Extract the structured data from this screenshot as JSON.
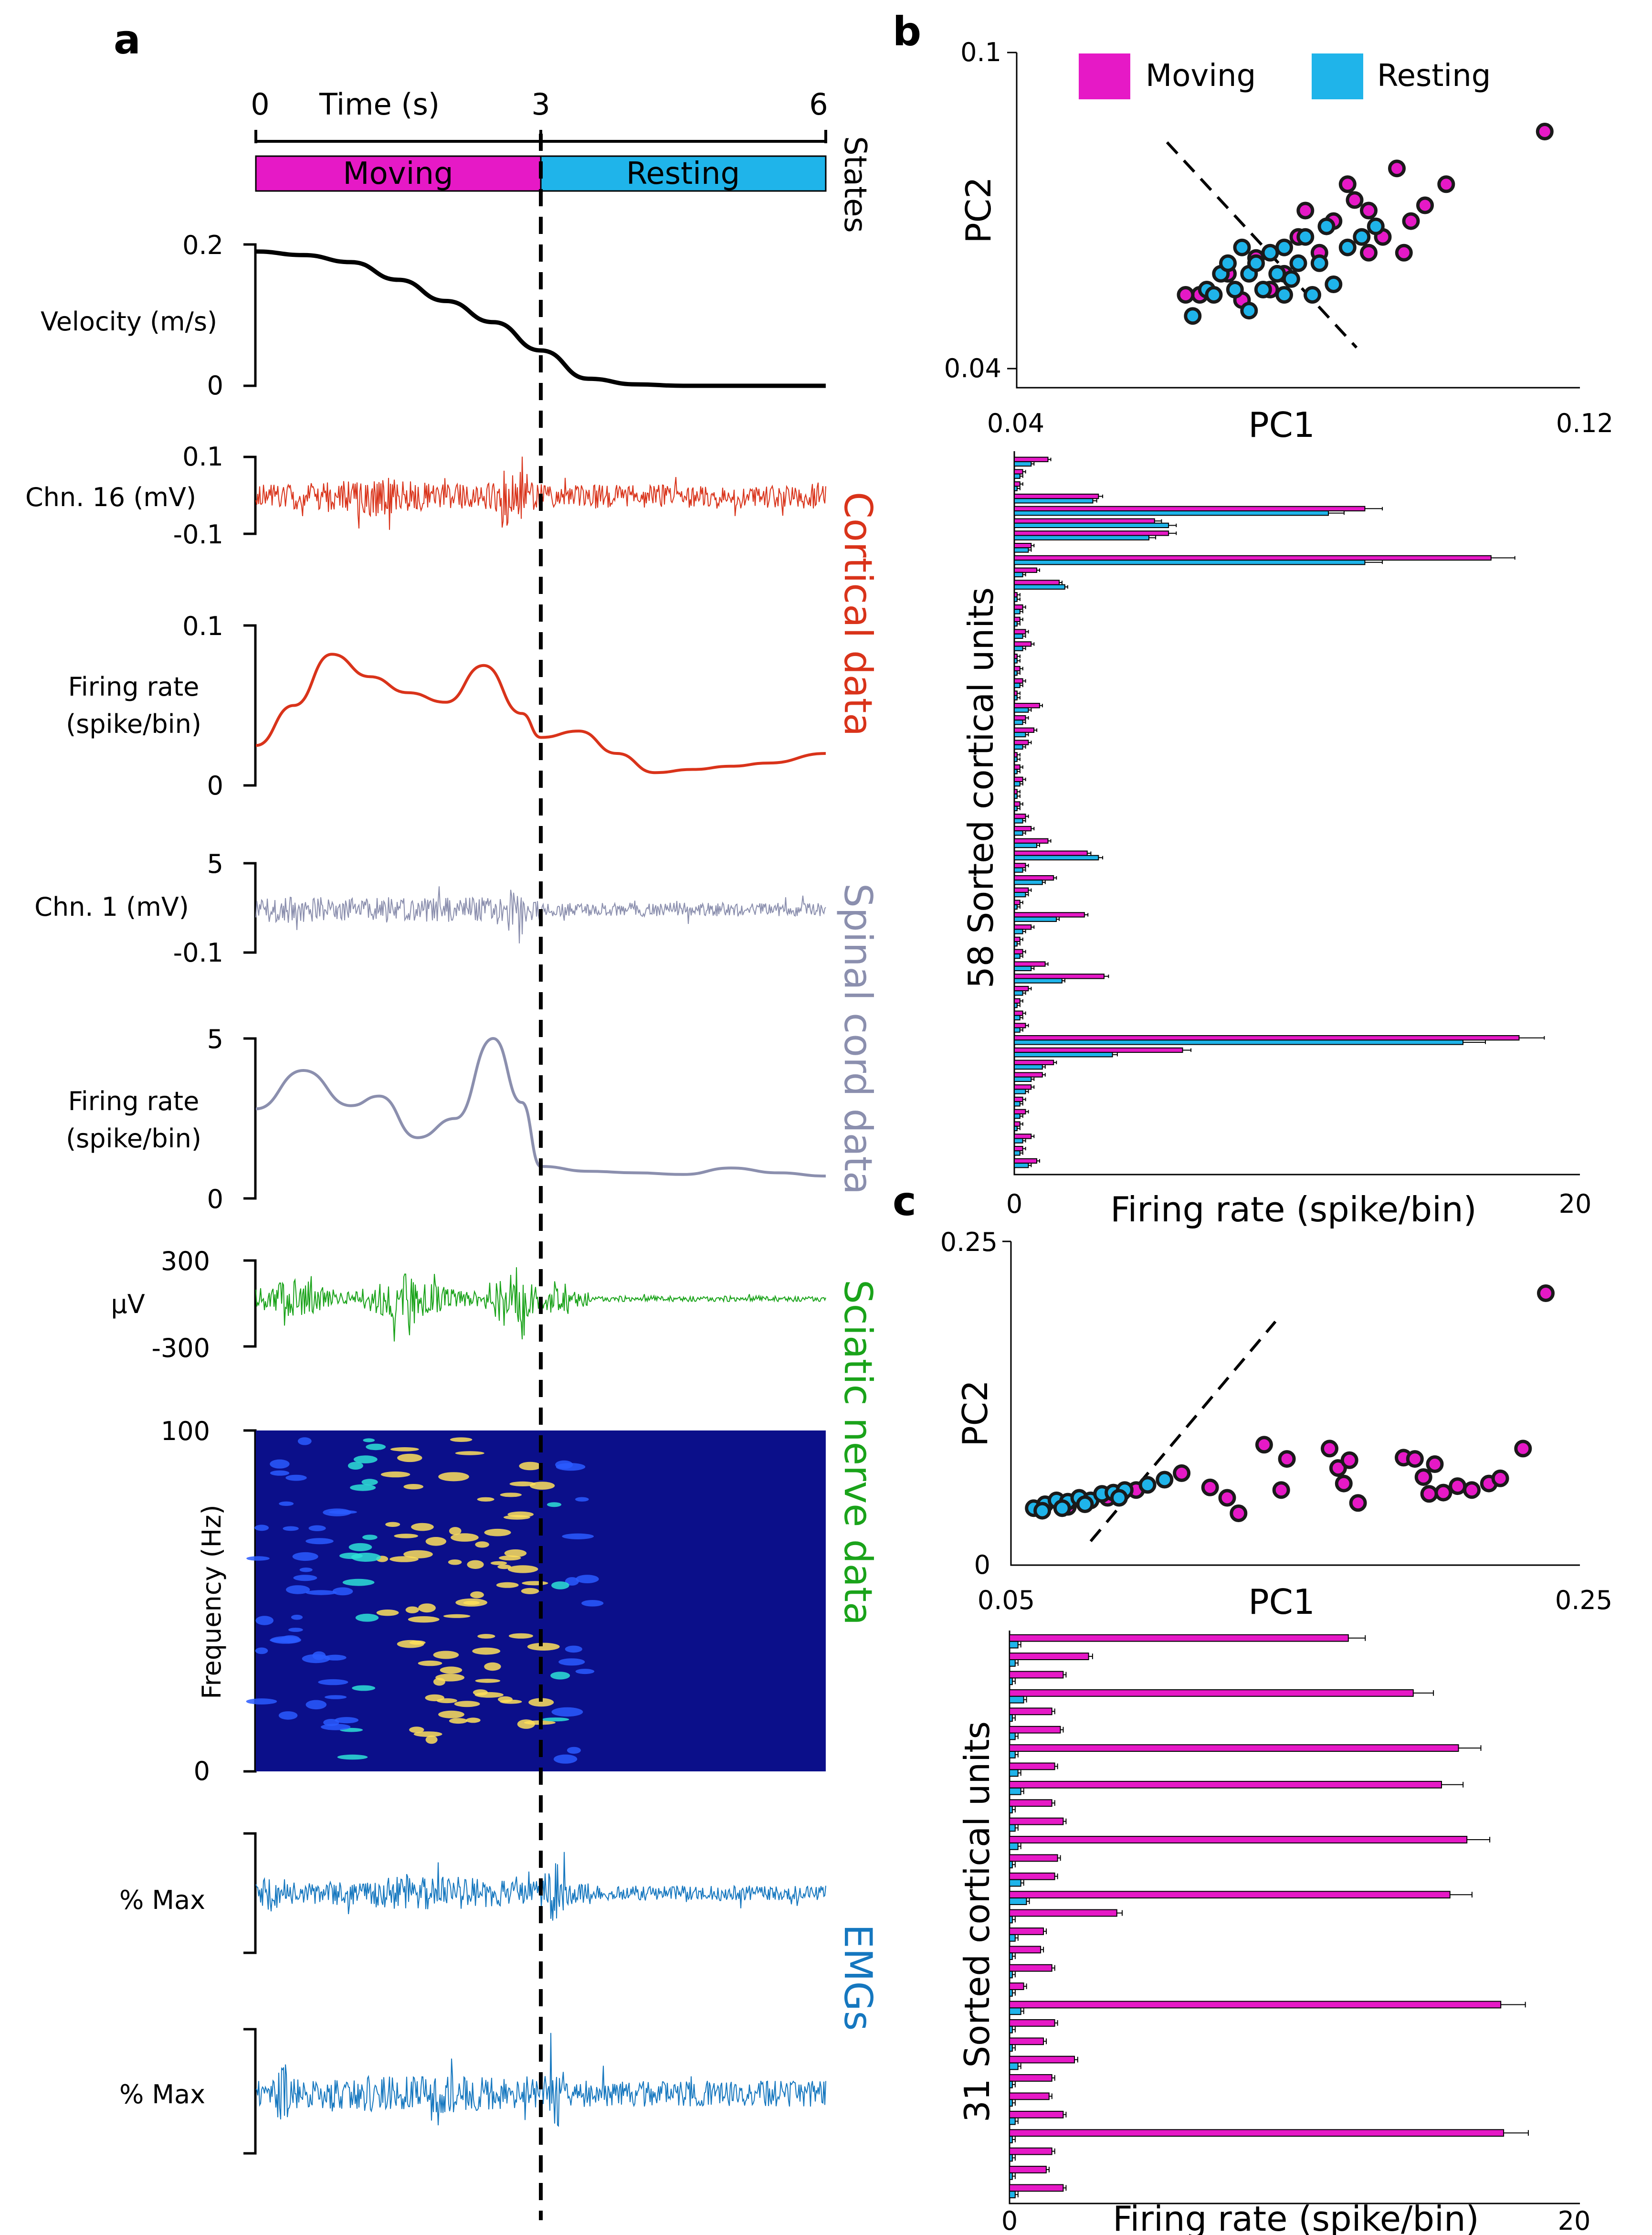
{
  "colors": {
    "moving": "#e619c6",
    "resting": "#1fb4ea",
    "cortical": "#d9331a",
    "spinal": "#8b8fae",
    "sciatic": "#1aa31a",
    "emg": "#1577bf",
    "velocity": "#000000",
    "spectrogram_bg": "#0b0f8a"
  },
  "panel_a": {
    "letter": "a",
    "time_axis": {
      "label": "Time (s)",
      "ticks": [
        "0",
        "3",
        "6"
      ],
      "range": [
        0,
        6
      ],
      "split": 3
    },
    "states": {
      "label": "States",
      "segments": [
        "Moving",
        "Resting"
      ]
    },
    "velocity": {
      "ylabel": "Velocity (m/s)",
      "ticks": [
        "0.2",
        "0"
      ],
      "ylim": [
        0,
        0.2
      ]
    },
    "cortical_raw": {
      "ylabel": "Chn. 16 (mV)",
      "ticks": [
        "0.1",
        "-0.1"
      ]
    },
    "cortical_rate": {
      "ylabel_1": "Firing rate",
      "ylabel_2": "(spike/bin)",
      "ticks": [
        "0.1",
        "0"
      ],
      "ylim": [
        0,
        0.1
      ]
    },
    "cortical_side": "Cortical data",
    "spinal_raw": {
      "ylabel": "Chn. 1 (mV)",
      "ticks": [
        "5",
        "-0.1"
      ]
    },
    "spinal_rate": {
      "ylabel_1": "Firing rate",
      "ylabel_2": "(spike/bin)",
      "ticks": [
        "5",
        "0"
      ],
      "ylim": [
        0,
        5
      ]
    },
    "spinal_side": "Spinal cord data",
    "sciatic_raw": {
      "ylabel": "µV",
      "ticks": [
        "300",
        "-300"
      ]
    },
    "spectrogram": {
      "ylabel": "Frequency (Hz)",
      "ticks": [
        "100",
        "0"
      ],
      "ylim": [
        0,
        100
      ]
    },
    "sciatic_side": "Sciatic nerve data",
    "emg1": {
      "ylabel": "% Max"
    },
    "emg2": {
      "ylabel": "% Max"
    },
    "emg_side": "EMGs"
  },
  "panel_b": {
    "letter": "b",
    "legend": [
      "Moving",
      "Resting"
    ],
    "scatter_xlabel": "PC1",
    "scatter_ylabel": "PC2",
    "scatter_xticks": [
      "0.04",
      "0.12"
    ],
    "scatter_yticks": [
      "0.1",
      "0.04"
    ],
    "bar_ylabel": "58 Sorted cortical units",
    "bar_xlabel": "Firing rate (spike/bin)",
    "bar_xticks": [
      "0",
      "20"
    ]
  },
  "panel_c": {
    "letter": "c",
    "scatter_xlabel": "PC1",
    "scatter_ylabel": "PC2",
    "scatter_xticks": [
      "0.05",
      "0.25"
    ],
    "scatter_yticks": [
      "0.25",
      "0"
    ],
    "bar_ylabel": "31 Sorted cortical units",
    "bar_xlabel": "Firing rate (spike/bin)",
    "bar_xticks": [
      "0",
      "20"
    ]
  },
  "chart_data": [
    {
      "id": "a_velocity",
      "type": "line",
      "x": [
        0,
        0.5,
        1,
        1.5,
        2,
        2.5,
        3,
        3.5,
        4,
        4.5,
        5,
        5.5,
        6
      ],
      "y": [
        0.19,
        0.185,
        0.175,
        0.15,
        0.12,
        0.09,
        0.05,
        0.01,
        0.002,
        0,
        0,
        0,
        0
      ],
      "xlim": [
        0,
        6
      ],
      "ylim": [
        0,
        0.2
      ]
    },
    {
      "id": "a_cortical_rate",
      "type": "line",
      "x": [
        0,
        0.4,
        0.8,
        1.2,
        1.6,
        2.0,
        2.4,
        2.8,
        3.0,
        3.4,
        3.8,
        4.2,
        4.6,
        5.0,
        5.4,
        6.0
      ],
      "y": [
        0.025,
        0.05,
        0.082,
        0.068,
        0.058,
        0.052,
        0.075,
        0.045,
        0.03,
        0.034,
        0.02,
        0.008,
        0.01,
        0.012,
        0.014,
        0.02
      ],
      "xlim": [
        0,
        6
      ],
      "ylim": [
        0,
        0.1
      ]
    },
    {
      "id": "a_spinal_rate",
      "type": "line",
      "x": [
        0,
        0.5,
        1.0,
        1.3,
        1.7,
        2.1,
        2.5,
        2.8,
        3.0,
        3.5,
        4.0,
        4.5,
        5.0,
        5.5,
        6.0
      ],
      "y": [
        2.8,
        4.0,
        2.9,
        3.2,
        1.9,
        2.5,
        5.0,
        3.0,
        1.0,
        0.85,
        0.8,
        0.75,
        0.95,
        0.8,
        0.7
      ],
      "xlim": [
        0,
        6
      ],
      "ylim": [
        0,
        5
      ]
    },
    {
      "id": "b_scatter",
      "type": "scatter",
      "xlabel": "PC1",
      "ylabel": "PC2",
      "xlim": [
        0.04,
        0.12
      ],
      "ylim": [
        0.04,
        0.1
      ],
      "series": [
        {
          "name": "Moving",
          "points": [
            [
              0.115,
              0.085
            ],
            [
              0.094,
              0.078
            ],
            [
              0.101,
              0.075
            ],
            [
              0.098,
              0.071
            ],
            [
              0.096,
              0.068
            ],
            [
              0.09,
              0.07
            ],
            [
              0.092,
              0.065
            ],
            [
              0.088,
              0.072
            ],
            [
              0.085,
              0.068
            ],
            [
              0.087,
              0.075
            ],
            [
              0.083,
              0.062
            ],
            [
              0.08,
              0.065
            ],
            [
              0.078,
              0.058
            ],
            [
              0.076,
              0.055
            ],
            [
              0.074,
              0.061
            ],
            [
              0.072,
              0.053
            ],
            [
              0.07,
              0.058
            ],
            [
              0.066,
              0.054
            ],
            [
              0.064,
              0.054
            ],
            [
              0.081,
              0.07
            ],
            [
              0.09,
              0.062
            ],
            [
              0.095,
              0.062
            ]
          ]
        },
        {
          "name": "Resting",
          "points": [
            [
              0.065,
              0.05
            ],
            [
              0.067,
              0.055
            ],
            [
              0.069,
              0.058
            ],
            [
              0.07,
              0.06
            ],
            [
              0.071,
              0.055
            ],
            [
              0.072,
              0.063
            ],
            [
              0.073,
              0.058
            ],
            [
              0.074,
              0.06
            ],
            [
              0.075,
              0.055
            ],
            [
              0.076,
              0.062
            ],
            [
              0.077,
              0.058
            ],
            [
              0.078,
              0.063
            ],
            [
              0.079,
              0.057
            ],
            [
              0.08,
              0.06
            ],
            [
              0.081,
              0.065
            ],
            [
              0.082,
              0.054
            ],
            [
              0.083,
              0.06
            ],
            [
              0.084,
              0.067
            ],
            [
              0.085,
              0.056
            ],
            [
              0.078,
              0.054
            ],
            [
              0.068,
              0.054
            ],
            [
              0.073,
              0.051
            ],
            [
              0.087,
              0.063
            ],
            [
              0.089,
              0.065
            ],
            [
              0.091,
              0.067
            ]
          ]
        }
      ]
    },
    {
      "id": "b_bars",
      "type": "bar",
      "orientation": "horizontal",
      "xlim": [
        0,
        20
      ],
      "units": 58,
      "series": [
        {
          "name": "Moving",
          "values": [
            1.2,
            0.3,
            0.2,
            3.0,
            12.5,
            5.0,
            5.5,
            0.6,
            17.0,
            0.8,
            1.6,
            0.1,
            0.3,
            0.2,
            0.4,
            0.6,
            0.1,
            0.2,
            0.3,
            0.1,
            0.9,
            0.4,
            0.7,
            0.5,
            0.1,
            0.2,
            0.3,
            0.1,
            0.2,
            0.4,
            0.6,
            1.2,
            2.6,
            0.4,
            1.4,
            0.5,
            0.2,
            2.5,
            0.6,
            0.2,
            0.3,
            1.1,
            3.2,
            0.5,
            0.2,
            0.3,
            0.4,
            18.0,
            6.0,
            1.4,
            1.0,
            0.6,
            0.3,
            0.4,
            0.2,
            0.6,
            0.3,
            0.8
          ]
        },
        {
          "name": "Resting",
          "values": [
            0.6,
            0.2,
            0.1,
            2.8,
            11.2,
            5.5,
            4.8,
            0.5,
            12.5,
            0.3,
            1.8,
            0.1,
            0.2,
            0.1,
            0.3,
            0.3,
            0.1,
            0.1,
            0.2,
            0.1,
            0.5,
            0.3,
            0.4,
            0.3,
            0.1,
            0.1,
            0.2,
            0.1,
            0.1,
            0.3,
            0.3,
            0.8,
            3.0,
            0.3,
            1.0,
            0.4,
            0.1,
            1.5,
            0.3,
            0.1,
            0.2,
            0.6,
            1.7,
            0.3,
            0.1,
            0.2,
            0.2,
            16.0,
            3.5,
            1.0,
            0.6,
            0.4,
            0.2,
            0.2,
            0.1,
            0.3,
            0.2,
            0.5
          ]
        }
      ]
    },
    {
      "id": "c_scatter",
      "type": "scatter",
      "xlabel": "PC1",
      "ylabel": "PC2",
      "xlim": [
        0.05,
        0.25
      ],
      "ylim": [
        0,
        0.25
      ],
      "series": [
        {
          "name": "Moving",
          "points": [
            [
              0.238,
              0.21
            ],
            [
              0.139,
              0.093
            ],
            [
              0.147,
              0.082
            ],
            [
              0.162,
              0.09
            ],
            [
              0.126,
              0.052
            ],
            [
              0.12,
              0.06
            ],
            [
              0.13,
              0.04
            ],
            [
              0.11,
              0.071
            ],
            [
              0.145,
              0.058
            ],
            [
              0.165,
              0.075
            ],
            [
              0.167,
              0.063
            ],
            [
              0.169,
              0.081
            ],
            [
              0.172,
              0.048
            ],
            [
              0.188,
              0.083
            ],
            [
              0.192,
              0.082
            ],
            [
              0.199,
              0.078
            ],
            [
              0.207,
              0.061
            ],
            [
              0.195,
              0.068
            ],
            [
              0.197,
              0.055
            ],
            [
              0.202,
              0.056
            ],
            [
              0.212,
              0.058
            ],
            [
              0.218,
              0.063
            ],
            [
              0.222,
              0.067
            ],
            [
              0.23,
              0.09
            ],
            [
              0.07,
              0.045
            ],
            [
              0.084,
              0.052
            ],
            [
              0.094,
              0.058
            ]
          ]
        },
        {
          "name": "Resting",
          "points": [
            [
              0.058,
              0.044
            ],
            [
              0.062,
              0.047
            ],
            [
              0.066,
              0.05
            ],
            [
              0.07,
              0.049
            ],
            [
              0.074,
              0.052
            ],
            [
              0.078,
              0.05
            ],
            [
              0.082,
              0.055
            ],
            [
              0.086,
              0.056
            ],
            [
              0.09,
              0.058
            ],
            [
              0.098,
              0.062
            ],
            [
              0.104,
              0.066
            ],
            [
              0.061,
              0.042
            ],
            [
              0.068,
              0.044
            ],
            [
              0.076,
              0.047
            ],
            [
              0.088,
              0.052
            ]
          ]
        }
      ]
    },
    {
      "id": "c_bars",
      "type": "bar",
      "orientation": "horizontal",
      "xlim": [
        0,
        20
      ],
      "units": 31,
      "series": [
        {
          "name": "Moving",
          "values": [
            12.0,
            2.8,
            1.9,
            14.3,
            1.5,
            1.8,
            15.9,
            1.6,
            15.3,
            1.5,
            1.9,
            16.2,
            1.7,
            1.6,
            15.6,
            3.8,
            1.2,
            1.1,
            1.5,
            0.5,
            17.4,
            1.6,
            1.2,
            2.3,
            1.5,
            1.4,
            1.9,
            17.5,
            1.5,
            1.3,
            1.9
          ]
        },
        {
          "name": "Resting",
          "values": [
            0.3,
            0.2,
            0.1,
            0.5,
            0.1,
            0.2,
            0.2,
            0.3,
            0.4,
            0.1,
            0.2,
            0.3,
            0.1,
            0.4,
            0.6,
            0.1,
            0.2,
            0.1,
            0.1,
            0.1,
            0.4,
            0.1,
            0.1,
            0.3,
            0.1,
            0.1,
            0.2,
            0.1,
            0.1,
            0.1,
            0.2
          ]
        }
      ]
    }
  ]
}
